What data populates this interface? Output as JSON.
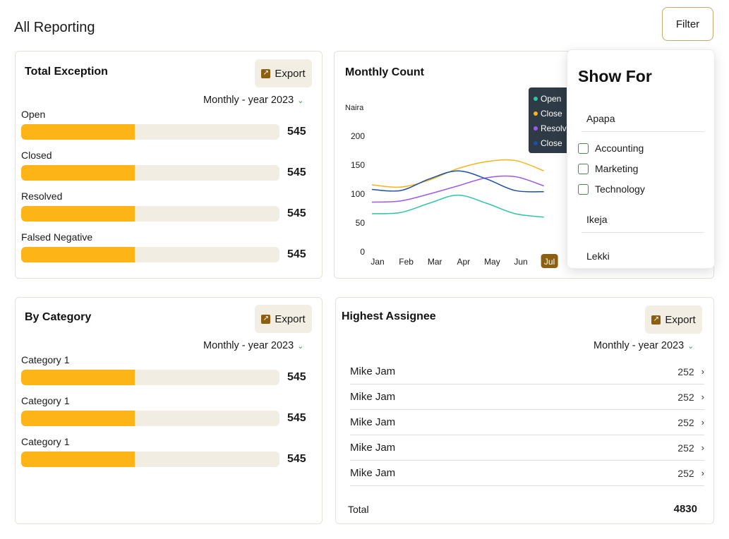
{
  "page": {
    "title": "All Reporting",
    "filter_label": "Filter"
  },
  "total_exception": {
    "title": "Total Exception",
    "export_label": "Export",
    "period": "Monthly - year 2023",
    "items": [
      {
        "label": "Open",
        "value": "545",
        "fill": 0.44
      },
      {
        "label": "Closed",
        "value": "545",
        "fill": 0.44
      },
      {
        "label": "Resolved",
        "value": "545",
        "fill": 0.44
      },
      {
        "label": "Falsed Negative",
        "value": "545",
        "fill": 0.44
      }
    ]
  },
  "monthly_count": {
    "title": "Monthly Count",
    "tooltip": [
      "Open",
      "Close",
      "Resolv",
      "Close"
    ]
  },
  "by_category": {
    "title": "By Category",
    "export_label": "Export",
    "period": "Monthly - year 2023",
    "items": [
      {
        "label": "Category 1",
        "value": "545",
        "fill": 0.44
      },
      {
        "label": "Category 1",
        "value": "545",
        "fill": 0.44
      },
      {
        "label": "Category 1",
        "value": "545",
        "fill": 0.44
      }
    ]
  },
  "highest_assignee": {
    "title": "Highest Assignee",
    "export_label": "Export",
    "period": "Monthly - year 2023",
    "rows": [
      {
        "name": "Mike Jam",
        "value": "252"
      },
      {
        "name": "Mike Jam",
        "value": "252"
      },
      {
        "name": "Mike Jam",
        "value": "252"
      },
      {
        "name": "Mike Jam",
        "value": "252"
      },
      {
        "name": "Mike Jam",
        "value": "252"
      }
    ],
    "total_label": "Total",
    "total_value": "4830"
  },
  "show_for": {
    "title": "Show For",
    "locations": [
      "Apapa",
      "Ikeja",
      "Lekki"
    ],
    "options": [
      "Accounting",
      "Marketing",
      "Technology"
    ]
  },
  "chart_data": {
    "type": "line",
    "ylabel": "Naira",
    "ylim": [
      0,
      200
    ],
    "yticks": [
      "200",
      "150",
      "100",
      "50",
      "0"
    ],
    "categories": [
      "Jan",
      "Feb",
      "Mar",
      "Apr",
      "May",
      "Jun",
      "Jul"
    ],
    "highlighted_category": "Jul",
    "series": [
      {
        "name": "Open",
        "color": "#2ec4a6",
        "values": [
          66,
          68,
          84,
          98,
          84,
          66,
          60
        ]
      },
      {
        "name": "Close",
        "color": "#f4b41a",
        "values": [
          116,
          112,
          124,
          144,
          156,
          158,
          140
        ]
      },
      {
        "name": "Resolved",
        "color": "#9b59f0",
        "values": [
          86,
          88,
          100,
          114,
          128,
          130,
          114
        ]
      },
      {
        "name": "Close",
        "color": "#1e4fa8",
        "values": [
          108,
          106,
          126,
          140,
          126,
          106,
          104
        ]
      }
    ]
  },
  "colors": {
    "accent": "#fcb416",
    "track": "#f2ede3",
    "export_bg": "#f3eee4",
    "brand": "#8b5e10"
  }
}
